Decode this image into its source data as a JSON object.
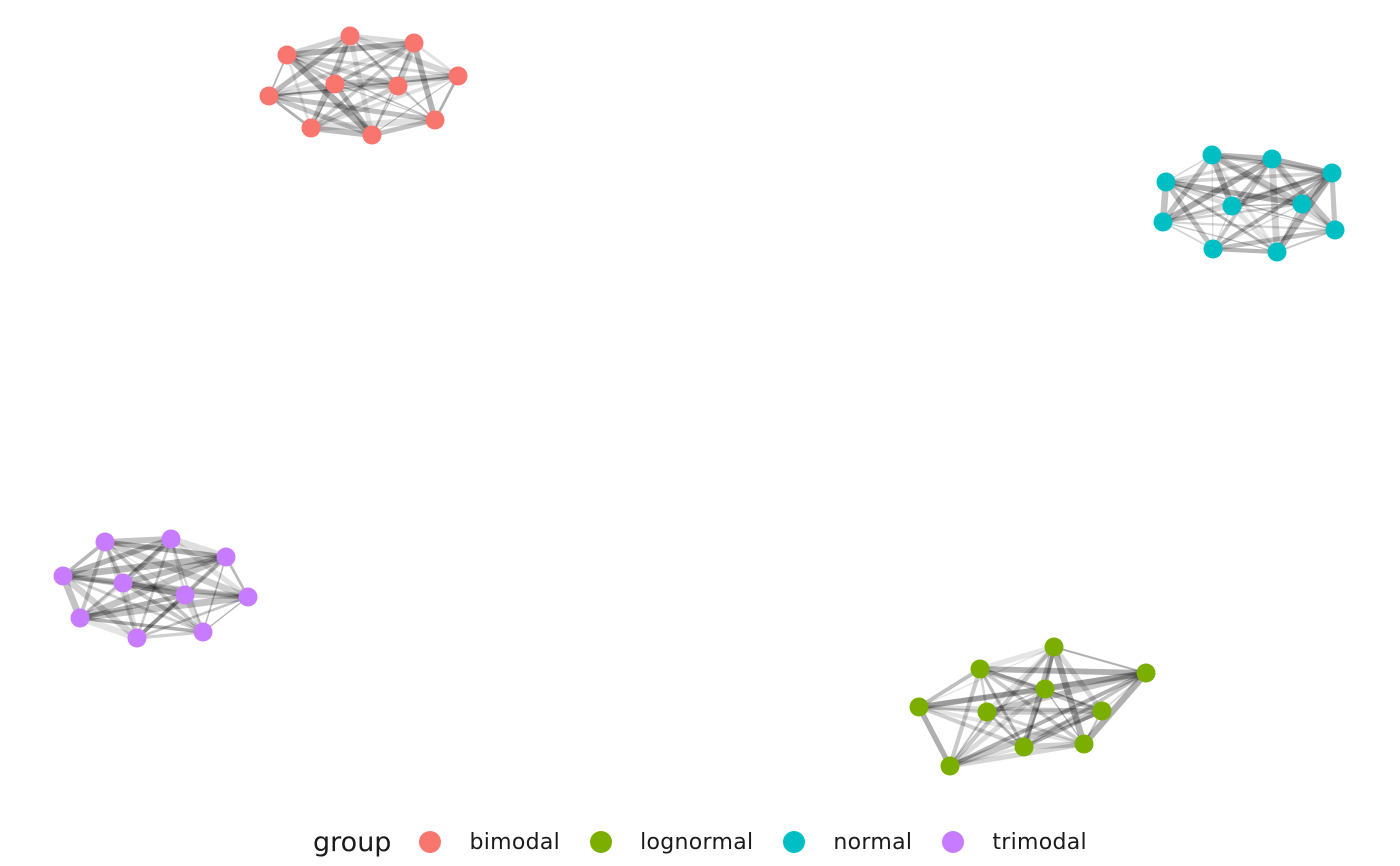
{
  "legend": {
    "title": "group",
    "items": [
      {
        "key": "bimodal",
        "label": "bimodal",
        "color": "#F8766D"
      },
      {
        "key": "lognormal",
        "label": "lognormal",
        "color": "#7CAE00"
      },
      {
        "key": "normal",
        "label": "normal",
        "color": "#00BFC4"
      },
      {
        "key": "trimodal",
        "label": "trimodal",
        "color": "#C77CFF"
      }
    ]
  },
  "edge_color": "#000000",
  "background": "#ffffff"
}
